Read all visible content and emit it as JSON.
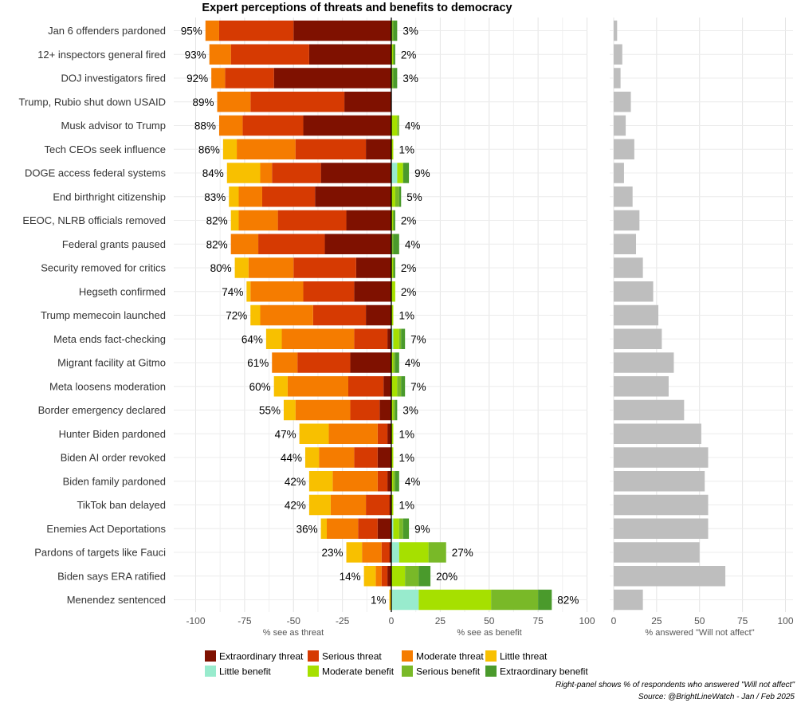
{
  "chart_data": {
    "type": "bar",
    "title": "Expert perceptions of threats and benefits to democracy",
    "categories": [
      "Jan 6 offenders pardoned",
      "12+ inspectors general fired",
      "DOJ investigators fired",
      "Trump, Rubio shut down USAID",
      "Musk advisor to Trump",
      "Tech CEOs seek influence",
      "DOGE access federal systems",
      "End birthright citizenship",
      "EEOC, NLRB officials removed",
      "Federal grants paused",
      "Security removed for critics",
      "Hegseth confirmed",
      "Trump memecoin launched",
      "Meta ends fact-checking",
      "Migrant facility at Gitmo",
      "Meta loosens moderation",
      "Border emergency declared",
      "Hunter Biden pardoned",
      "Biden AI order revoked",
      "Biden family pardoned",
      "TikTok ban delayed",
      "Enemies Act Deportations",
      "Pardons of targets like Fauci",
      "Biden says ERA ratified",
      "Menendez sentenced"
    ],
    "threat_series": [
      {
        "name": "Extraordinary threat",
        "color": "#7f1100",
        "values": [
          50,
          42,
          60,
          24,
          45,
          13,
          36,
          39,
          23,
          34,
          18,
          19,
          13,
          2,
          21,
          4,
          6,
          2,
          7,
          2,
          1,
          7,
          1,
          2,
          0
        ]
      },
      {
        "name": "Serious threat",
        "color": "#d63a02",
        "values": [
          38,
          40,
          25,
          48,
          31,
          36,
          25,
          27,
          35,
          34,
          32,
          26,
          27,
          17,
          27,
          18,
          15,
          5,
          12,
          5,
          12,
          10,
          4,
          3,
          0
        ]
      },
      {
        "name": "Moderate threat",
        "color": "#f57c00",
        "values": [
          7,
          11,
          7,
          17,
          12,
          30,
          6,
          12,
          20,
          14,
          23,
          27,
          27,
          37,
          13,
          31,
          28,
          25,
          18,
          23,
          18,
          16,
          10,
          3,
          0
        ]
      },
      {
        "name": "Little threat",
        "color": "#f8c000",
        "values": [
          0,
          0,
          0,
          0,
          0,
          7,
          17,
          5,
          4,
          0,
          7,
          2,
          5,
          8,
          0,
          7,
          6,
          15,
          7,
          12,
          11,
          3,
          8,
          6,
          1
        ]
      }
    ],
    "benefit_series": [
      {
        "name": "Little benefit",
        "color": "#98ebcd",
        "values": [
          0,
          0,
          0,
          0,
          0,
          0,
          3,
          0,
          0,
          0,
          0,
          0,
          0,
          1,
          0,
          0,
          0,
          0,
          0,
          0,
          0,
          1,
          4,
          0,
          14
        ]
      },
      {
        "name": "Moderate benefit",
        "color": "#a6e000",
        "values": [
          0,
          1,
          0,
          0,
          3,
          1,
          3,
          2,
          1,
          0,
          1,
          2,
          1,
          3,
          1,
          3,
          1,
          1,
          1,
          1,
          1,
          3,
          15,
          7,
          37
        ]
      },
      {
        "name": "Serious benefit",
        "color": "#79b928",
        "values": [
          1,
          0,
          1,
          0,
          1,
          0,
          0,
          2,
          0,
          1,
          0,
          0,
          0,
          1,
          1,
          2,
          1,
          0,
          0,
          1,
          0,
          2,
          9,
          7,
          24
        ]
      },
      {
        "name": "Extraordinary benefit",
        "color": "#4a9a2c",
        "values": [
          2,
          1,
          2,
          0,
          0,
          0,
          3,
          1,
          1,
          3,
          1,
          0,
          0,
          2,
          2,
          2,
          1,
          0,
          0,
          2,
          0,
          3,
          0,
          6,
          7
        ]
      }
    ],
    "threat_totals": [
      "95%",
      "93%",
      "92%",
      "89%",
      "88%",
      "86%",
      "84%",
      "83%",
      "82%",
      "82%",
      "80%",
      "74%",
      "72%",
      "64%",
      "61%",
      "60%",
      "55%",
      "47%",
      "44%",
      "42%",
      "42%",
      "36%",
      "23%",
      "14%",
      "1%"
    ],
    "benefit_totals": [
      "3%",
      "2%",
      "3%",
      "",
      "4%",
      "1%",
      "9%",
      "5%",
      "2%",
      "4%",
      "2%",
      "2%",
      "1%",
      "7%",
      "4%",
      "7%",
      "3%",
      "1%",
      "1%",
      "4%",
      "1%",
      "9%",
      "27%",
      "20%",
      "82%"
    ],
    "will_not_affect": {
      "color": "#bebebe",
      "values": [
        2,
        5,
        4,
        10,
        7,
        12,
        6,
        11,
        15,
        13,
        17,
        23,
        26,
        28,
        35,
        32,
        41,
        51,
        55,
        53,
        55,
        55,
        50,
        65,
        17
      ]
    },
    "left_axis": {
      "ticks": [
        -100,
        -75,
        -50,
        -25,
        0
      ],
      "tick_labels": [
        "-100",
        "-75",
        "-50",
        "-25",
        "0"
      ],
      "xlabel": "% see as threat",
      "xlim": [
        -112,
        0
      ]
    },
    "mid_axis": {
      "ticks": [
        25,
        50,
        75,
        100
      ],
      "tick_labels": [
        "25",
        "50",
        "75",
        "100"
      ],
      "xlabel": "% see as benefit",
      "xlim": [
        0,
        107
      ]
    },
    "right_axis": {
      "ticks": [
        0,
        25,
        50,
        75,
        100
      ],
      "tick_labels": [
        "0",
        "25",
        "50",
        "75",
        "100"
      ],
      "xlabel": "% answered \"Will not affect\"",
      "xlim": [
        0,
        103
      ]
    },
    "legend": {
      "placement": "bottom",
      "items": [
        {
          "label": "Extraordinary threat",
          "color": "#7f1100"
        },
        {
          "label": "Serious threat",
          "color": "#d63a02"
        },
        {
          "label": "Moderate threat",
          "color": "#f57c00"
        },
        {
          "label": "Little threat",
          "color": "#f8c000"
        },
        {
          "label": "Little benefit",
          "color": "#98ebcd"
        },
        {
          "label": "Moderate benefit",
          "color": "#a6e000"
        },
        {
          "label": "Serious benefit",
          "color": "#79b928"
        },
        {
          "label": "Extraordinary benefit",
          "color": "#4a9a2c"
        }
      ]
    },
    "caption_line1": "Right-panel shows % of respondents who answered \"Will not affect\"",
    "caption_line2": "Source: @BrightLineWatch - Jan / Feb 2025"
  }
}
